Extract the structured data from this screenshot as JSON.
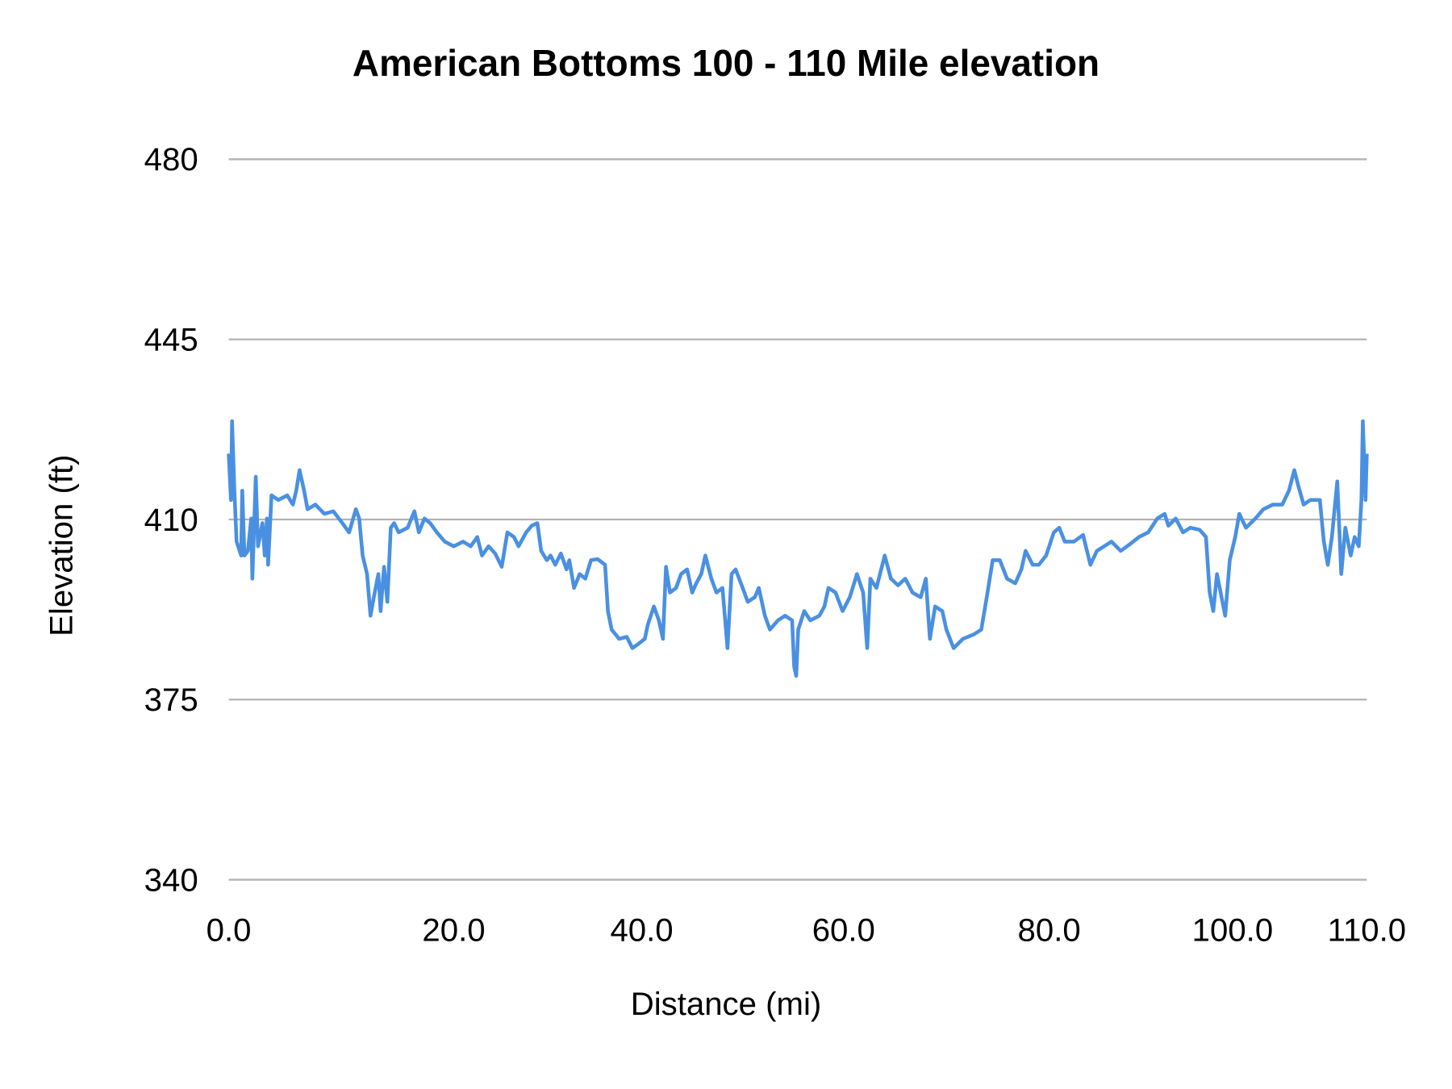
{
  "chart_data": {
    "type": "line",
    "title": "American Bottoms 100 - 110 Mile elevation",
    "xlabel": "Distance (mi)",
    "ylabel": "Elevation (ft)",
    "ylim": [
      340,
      480
    ],
    "yticks": [
      "480",
      "445",
      "410",
      "375",
      "340"
    ],
    "ytick_values": [
      480,
      445,
      410,
      375,
      340
    ],
    "xticks": [
      "0.0",
      "20.0",
      "40.0",
      "60.0",
      "80.0",
      "100.0",
      "110.0"
    ],
    "xtick_values": [
      0,
      20,
      40,
      60,
      80,
      100,
      110
    ],
    "grid": "horizontal",
    "legend": "none",
    "colors": {
      "line": "#4a90e2",
      "grid": "#b3b3b3"
    },
    "series": [
      {
        "x": [
          0.0,
          0.2,
          0.3,
          0.5,
          0.7,
          1.1,
          1.2,
          1.4,
          1.7,
          2.0,
          2.1,
          2.4,
          2.6,
          3.0,
          3.2,
          3.4,
          3.5,
          3.8,
          4.4,
          5.2,
          5.7,
          6.0,
          6.3,
          6.7,
          7.0,
          7.7,
          8.5,
          9.3,
          10.1,
          10.7,
          11.3,
          11.6,
          11.9,
          12.3,
          12.6,
          12.9,
          13.3,
          13.5,
          13.8,
          14.1,
          14.4,
          14.7,
          15.1,
          15.9,
          16.5,
          16.9,
          17.4,
          17.9,
          18.5,
          19.2,
          20.0,
          21.0,
          21.8,
          22.5,
          23.0,
          23.7,
          24.4,
          25.1,
          25.7,
          26.4,
          26.9,
          27.7,
          28.3,
          28.9,
          29.3,
          29.9,
          30.3,
          30.8,
          31.4,
          32.0,
          32.3,
          32.8,
          33.4,
          34.0,
          34.6,
          35.3,
          36.1,
          36.4,
          36.8,
          37.6,
          38.4,
          39.0,
          39.7,
          40.3,
          40.6,
          41.2,
          41.7,
          42.1,
          42.4,
          42.8,
          43.4,
          43.9,
          44.5,
          45.0,
          45.4,
          45.9,
          46.3,
          46.9,
          47.4,
          48.0,
          48.5,
          48.9,
          49.3,
          50.0,
          50.5,
          51.2,
          51.6,
          52.2,
          52.7,
          53.5,
          54.2,
          54.9,
          55.1,
          55.3,
          55.5,
          56.1,
          56.7,
          57.6,
          58.1,
          58.5,
          59.2,
          59.9,
          60.6,
          61.3,
          61.9,
          62.3,
          62.6,
          63.2,
          64.0,
          64.6,
          65.3,
          66.0,
          66.7,
          67.5,
          68.0,
          68.4,
          68.9,
          69.6,
          70.0,
          70.7,
          71.6,
          72.7,
          73.4,
          74.0,
          74.5,
          75.2,
          75.9,
          76.7,
          77.3,
          77.7,
          78.4,
          79.0,
          79.7,
          80.5,
          81.1,
          81.7,
          82.7,
          83.7,
          84.5,
          85.2,
          86.0,
          86.8,
          87.8,
          88.8,
          89.8,
          90.8,
          91.8,
          92.6,
          93.0,
          93.8,
          94.6,
          95.4,
          96.4,
          97.1,
          97.5,
          97.9,
          98.3,
          98.9,
          99.2,
          99.7,
          100.2,
          100.5,
          101.0,
          101.7,
          102.3,
          103.0,
          103.7,
          104.2,
          104.6,
          104.9,
          105.3,
          105.8,
          106.5,
          106.8,
          107.1,
          107.4,
          107.8,
          108.1,
          108.4,
          108.8,
          109.1,
          109.4,
          109.6,
          109.7,
          109.9,
          110.0
        ],
        "y": [
          422.8,
          413.8,
          429.1,
          415.6,
          405.7,
          403.0,
          415.6,
          403.0,
          403.9,
          410.2,
          398.5,
          418.3,
          404.8,
          409.3,
          403.0,
          410.2,
          401.2,
          414.7,
          413.8,
          414.7,
          412.9,
          415.6,
          419.6,
          415.6,
          412.0,
          412.9,
          411.1,
          411.6,
          409.3,
          407.5,
          412.0,
          410.2,
          403.0,
          399.4,
          391.3,
          394.9,
          399.4,
          392.2,
          400.8,
          394.0,
          408.4,
          409.3,
          407.5,
          408.4,
          411.6,
          407.5,
          410.2,
          409.3,
          407.5,
          405.7,
          404.8,
          405.7,
          404.8,
          406.6,
          403.0,
          404.8,
          403.4,
          400.8,
          407.5,
          406.6,
          404.8,
          407.5,
          408.8,
          409.3,
          403.9,
          402.1,
          403.0,
          401.2,
          403.4,
          400.3,
          402.1,
          396.7,
          399.4,
          398.5,
          402.1,
          402.3,
          401.2,
          392.2,
          388.6,
          386.8,
          387.2,
          385.0,
          385.9,
          386.8,
          389.5,
          393.1,
          390.4,
          386.8,
          400.8,
          395.8,
          396.7,
          399.4,
          400.3,
          395.8,
          397.6,
          399.4,
          403.0,
          398.5,
          395.8,
          396.7,
          385.0,
          399.4,
          400.3,
          396.7,
          394.0,
          394.9,
          396.7,
          391.3,
          388.6,
          390.4,
          391.3,
          390.4,
          381.4,
          379.6,
          388.6,
          392.2,
          390.4,
          391.3,
          393.1,
          396.7,
          395.8,
          392.2,
          394.9,
          399.4,
          395.8,
          385.0,
          398.5,
          396.7,
          403.0,
          398.5,
          397.2,
          398.5,
          395.8,
          394.9,
          398.5,
          386.8,
          393.1,
          392.2,
          388.6,
          385.0,
          386.8,
          387.7,
          388.6,
          395.8,
          402.1,
          402.1,
          398.5,
          397.6,
          400.3,
          403.9,
          401.2,
          401.2,
          403.0,
          407.5,
          408.4,
          405.7,
          405.7,
          407.0,
          401.2,
          403.9,
          404.8,
          405.7,
          403.9,
          405.2,
          406.6,
          407.5,
          410.2,
          411.1,
          408.8,
          410.2,
          407.5,
          408.4,
          408.0,
          406.6,
          395.8,
          392.2,
          399.4,
          394.0,
          391.3,
          402.1,
          406.6,
          411.1,
          408.4,
          410.2,
          412.0,
          412.9,
          412.9,
          415.6,
          419.6,
          416.5,
          412.9,
          413.8,
          413.8,
          405.7,
          401.2,
          406.6,
          417.4,
          399.4,
          408.4,
          403.0,
          406.6,
          404.8,
          413.8,
          429.1,
          413.8,
          422.8
        ]
      }
    ]
  }
}
